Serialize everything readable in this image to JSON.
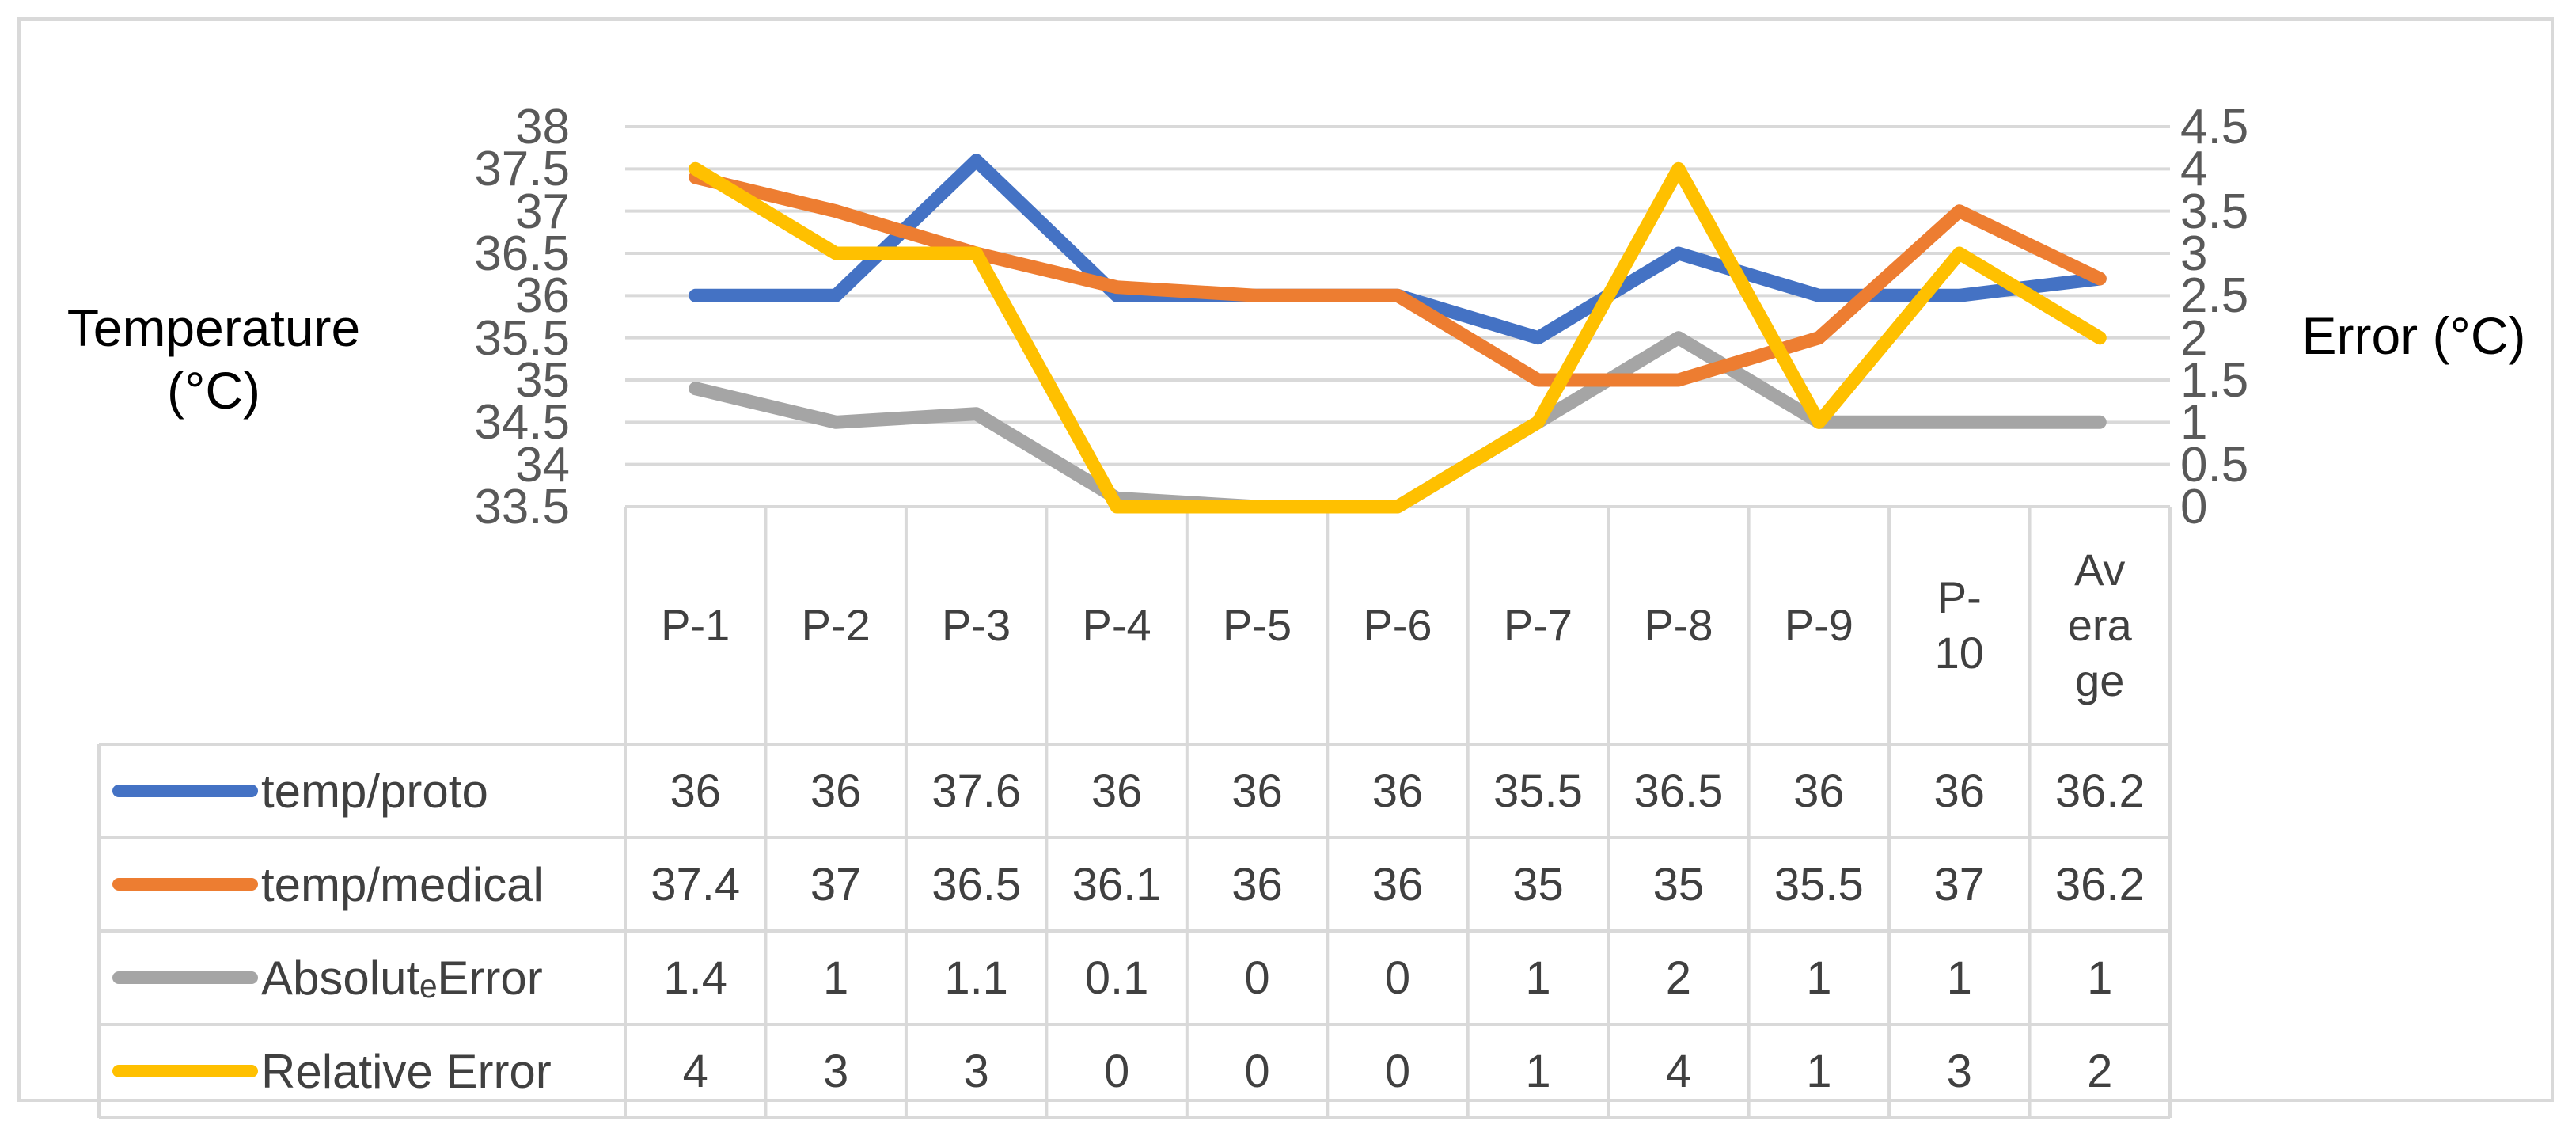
{
  "chart_data": {
    "type": "line",
    "categories": [
      "P-1",
      "P-2",
      "P-3",
      "P-4",
      "P-5",
      "P-6",
      "P-7",
      "P-8",
      "P-9",
      "P-10",
      "Average"
    ],
    "category_display": [
      "P-1",
      "P-2",
      "P-3",
      "P-4",
      "P-5",
      "P-6",
      "P-7",
      "P-8",
      "P-9",
      "P-\n10",
      "Av\nera\nge"
    ],
    "ylabel_left": "Temperature (°C)",
    "ylabel_right": "Error (°C)",
    "ylim_left": [
      33.5,
      38
    ],
    "ylim_right": [
      0,
      4.5
    ],
    "yticks_left": [
      "38",
      "37.5",
      "37",
      "36.5",
      "36",
      "35.5",
      "35",
      "34.5",
      "34",
      "33.5"
    ],
    "yticks_right": [
      "4.5",
      "4",
      "3.5",
      "3",
      "2.5",
      "2",
      "1.5",
      "1",
      "0.5",
      "0"
    ],
    "grid": true,
    "legend": "data-table",
    "series": [
      {
        "name": "temp/proto",
        "axis": "left",
        "color": "#4472c4",
        "values": [
          36,
          36,
          37.6,
          36,
          36,
          36,
          35.5,
          36.5,
          36,
          36,
          36.2
        ],
        "labels": [
          "36",
          "36",
          "37.6",
          "36",
          "36",
          "36",
          "35.5",
          "36.5",
          "36",
          "36",
          "36.2"
        ]
      },
      {
        "name": "temp/medical",
        "axis": "left",
        "color": "#ed7d31",
        "values": [
          37.4,
          37,
          36.5,
          36.1,
          36,
          36,
          35,
          35,
          35.5,
          37,
          36.2
        ],
        "labels": [
          "37.4",
          "37",
          "36.5",
          "36.1",
          "36",
          "36",
          "35",
          "35",
          "35.5",
          "37",
          "36.2"
        ]
      },
      {
        "name": "AbsolutₑError",
        "axis": "right",
        "color": "#a5a5a5",
        "values": [
          1.4,
          1,
          1.1,
          0.1,
          0,
          0,
          1,
          2,
          1,
          1,
          1
        ],
        "labels": [
          "1.4",
          "1",
          "1.1",
          "0.1",
          "0",
          "0",
          "1",
          "2",
          "1",
          "1",
          "1"
        ]
      },
      {
        "name": "Relative Error",
        "axis": "right",
        "color": "#ffc000",
        "values": [
          4,
          3,
          3,
          0,
          0,
          0,
          1,
          4,
          1,
          3,
          2
        ],
        "labels": [
          "4",
          "3",
          "3",
          "0",
          "0",
          "0",
          "1",
          "4",
          "1",
          "3",
          "2"
        ]
      }
    ]
  }
}
